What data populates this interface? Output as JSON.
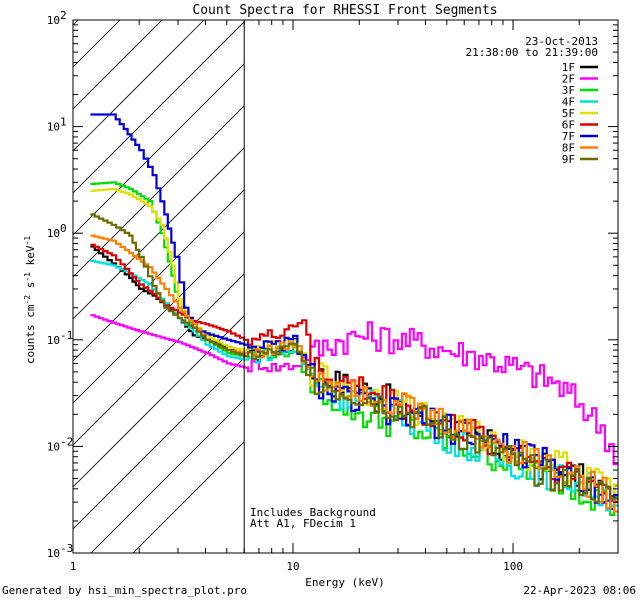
{
  "chart_data": {
    "type": "line",
    "title": "Count Spectra for RHESSI Front Segments",
    "xlabel": "Energy (keV)",
    "ylabel_main": "counts cm",
    "ylabel_sup1": "-2",
    "ylabel_mid": " s",
    "ylabel_sup2": "-1",
    "ylabel_end": " keV",
    "ylabel_sup3": "-1",
    "xscale": "log",
    "yscale": "log",
    "xlim": [
      1,
      300
    ],
    "ylim": [
      0.001,
      100
    ],
    "x_ticks": [
      {
        "value": 1,
        "label": "1"
      },
      {
        "value": 10,
        "label": "10"
      },
      {
        "value": 100,
        "label": "100"
      }
    ],
    "y_ticks": [
      {
        "value": 0.001,
        "base": "10",
        "exp": "-3"
      },
      {
        "value": 0.01,
        "base": "10",
        "exp": "-2"
      },
      {
        "value": 0.1,
        "base": "10",
        "exp": "-1"
      },
      {
        "value": 1,
        "base": "10",
        "exp": "0"
      },
      {
        "value": 10,
        "base": "10",
        "exp": "1"
      },
      {
        "value": 100,
        "base": "10",
        "exp": "2"
      }
    ],
    "date": "23-Oct-2013",
    "time_range": "21:38:00 to 21:39:00",
    "shaded_region": {
      "x_from": 1,
      "x_to": 6
    },
    "annotation_lines": [
      "Includes Background",
      "Att A1, FDecim 1"
    ],
    "series": [
      {
        "name": "1F",
        "color": "#000000",
        "values": [
          [
            1.2,
            0.75
          ],
          [
            1.5,
            0.52
          ],
          [
            1.8,
            0.38
          ],
          [
            2.0,
            0.3
          ],
          [
            2.3,
            0.26
          ],
          [
            2.6,
            0.21
          ],
          [
            3.0,
            0.16
          ],
          [
            3.5,
            0.11
          ],
          [
            4.0,
            0.1
          ],
          [
            5.0,
            0.085
          ],
          [
            6.0,
            0.07
          ],
          [
            8.0,
            0.075
          ],
          [
            10.0,
            0.09
          ],
          [
            12.0,
            0.05
          ],
          [
            15.0,
            0.04
          ],
          [
            20.0,
            0.035
          ],
          [
            30.0,
            0.025
          ],
          [
            50.0,
            0.016
          ],
          [
            80.0,
            0.01
          ],
          [
            120.0,
            0.007
          ],
          [
            200.0,
            0.005
          ],
          [
            300.0,
            0.003
          ]
        ]
      },
      {
        "name": "2F",
        "color": "#ff00ff",
        "values": [
          [
            1.2,
            0.17
          ],
          [
            1.5,
            0.145
          ],
          [
            2.0,
            0.12
          ],
          [
            2.5,
            0.105
          ],
          [
            3.0,
            0.095
          ],
          [
            4.0,
            0.075
          ],
          [
            5.0,
            0.06
          ],
          [
            6.0,
            0.055
          ],
          [
            7.0,
            0.06
          ],
          [
            8.0,
            0.055
          ],
          [
            10.0,
            0.058
          ],
          [
            12.0,
            0.075
          ],
          [
            15.0,
            0.095
          ],
          [
            20.0,
            0.11
          ],
          [
            25.0,
            0.105
          ],
          [
            30.0,
            0.1
          ],
          [
            40.0,
            0.09
          ],
          [
            50.0,
            0.08
          ],
          [
            70.0,
            0.07
          ],
          [
            100.0,
            0.055
          ],
          [
            150.0,
            0.04
          ],
          [
            200.0,
            0.025
          ],
          [
            250.0,
            0.015
          ],
          [
            300.0,
            0.007
          ]
        ]
      },
      {
        "name": "3F",
        "color": "#00dd00",
        "values": [
          [
            1.2,
            2.9
          ],
          [
            1.5,
            3.0
          ],
          [
            1.8,
            2.6
          ],
          [
            2.2,
            2.0
          ],
          [
            2.5,
            1.0
          ],
          [
            2.8,
            0.4
          ],
          [
            3.0,
            0.2
          ],
          [
            3.5,
            0.13
          ],
          [
            4.0,
            0.1
          ],
          [
            5.0,
            0.075
          ],
          [
            6.0,
            0.07
          ],
          [
            8.0,
            0.075
          ],
          [
            10.0,
            0.08
          ],
          [
            12.0,
            0.04
          ],
          [
            15.0,
            0.028
          ],
          [
            20.0,
            0.02
          ],
          [
            30.0,
            0.016
          ],
          [
            50.0,
            0.011
          ],
          [
            80.0,
            0.008
          ],
          [
            120.0,
            0.006
          ],
          [
            200.0,
            0.004
          ],
          [
            300.0,
            0.0025
          ]
        ]
      },
      {
        "name": "4F",
        "color": "#00e0e0",
        "values": [
          [
            1.2,
            0.55
          ],
          [
            1.5,
            0.5
          ],
          [
            1.8,
            0.42
          ],
          [
            2.2,
            0.33
          ],
          [
            2.6,
            0.22
          ],
          [
            3.0,
            0.16
          ],
          [
            3.5,
            0.12
          ],
          [
            4.0,
            0.09
          ],
          [
            5.0,
            0.07
          ],
          [
            6.0,
            0.065
          ],
          [
            8.0,
            0.075
          ],
          [
            10.0,
            0.08
          ],
          [
            12.0,
            0.045
          ],
          [
            15.0,
            0.032
          ],
          [
            20.0,
            0.028
          ],
          [
            30.0,
            0.02
          ],
          [
            50.0,
            0.012
          ],
          [
            80.0,
            0.008
          ],
          [
            120.0,
            0.006
          ],
          [
            200.0,
            0.0045
          ],
          [
            300.0,
            0.003
          ]
        ]
      },
      {
        "name": "5F",
        "color": "#e0e000",
        "values": [
          [
            1.2,
            2.5
          ],
          [
            1.5,
            2.6
          ],
          [
            1.8,
            2.3
          ],
          [
            2.2,
            1.8
          ],
          [
            2.5,
            1.2
          ],
          [
            2.8,
            0.5
          ],
          [
            3.0,
            0.24
          ],
          [
            3.5,
            0.14
          ],
          [
            4.0,
            0.11
          ],
          [
            5.0,
            0.085
          ],
          [
            6.0,
            0.08
          ],
          [
            8.0,
            0.085
          ],
          [
            10.0,
            0.09
          ],
          [
            12.0,
            0.05
          ],
          [
            15.0,
            0.04
          ],
          [
            20.0,
            0.035
          ],
          [
            30.0,
            0.025
          ],
          [
            50.0,
            0.016
          ],
          [
            80.0,
            0.011
          ],
          [
            120.0,
            0.008
          ],
          [
            200.0,
            0.006
          ],
          [
            300.0,
            0.0035
          ]
        ]
      },
      {
        "name": "6F",
        "color": "#dd0000",
        "values": [
          [
            1.2,
            0.78
          ],
          [
            1.5,
            0.62
          ],
          [
            1.8,
            0.42
          ],
          [
            2.0,
            0.33
          ],
          [
            2.3,
            0.27
          ],
          [
            2.6,
            0.21
          ],
          [
            3.0,
            0.18
          ],
          [
            3.5,
            0.15
          ],
          [
            4.0,
            0.14
          ],
          [
            4.5,
            0.13
          ],
          [
            5.0,
            0.12
          ],
          [
            6.0,
            0.1
          ],
          [
            8.0,
            0.11
          ],
          [
            10.0,
            0.14
          ],
          [
            11.0,
            0.16
          ],
          [
            12.0,
            0.06
          ],
          [
            15.0,
            0.042
          ],
          [
            20.0,
            0.035
          ],
          [
            30.0,
            0.025
          ],
          [
            50.0,
            0.016
          ],
          [
            80.0,
            0.011
          ],
          [
            120.0,
            0.008
          ],
          [
            200.0,
            0.005
          ],
          [
            300.0,
            0.0035
          ]
        ]
      },
      {
        "name": "7F",
        "color": "#0000dd",
        "values": [
          [
            1.2,
            13.0
          ],
          [
            1.5,
            13.0
          ],
          [
            1.7,
            9.5
          ],
          [
            2.0,
            6.0
          ],
          [
            2.3,
            3.5
          ],
          [
            2.6,
            1.5
          ],
          [
            2.9,
            0.6
          ],
          [
            3.2,
            0.2
          ],
          [
            3.5,
            0.13
          ],
          [
            4.0,
            0.115
          ],
          [
            5.0,
            0.1
          ],
          [
            6.0,
            0.09
          ],
          [
            8.0,
            0.085
          ],
          [
            10.0,
            0.1
          ],
          [
            12.0,
            0.045
          ],
          [
            15.0,
            0.03
          ],
          [
            20.0,
            0.025
          ],
          [
            30.0,
            0.02
          ],
          [
            50.0,
            0.015
          ],
          [
            80.0,
            0.011
          ],
          [
            120.0,
            0.008
          ],
          [
            200.0,
            0.005
          ],
          [
            300.0,
            0.003
          ]
        ]
      },
      {
        "name": "8F",
        "color": "#ff8000",
        "values": [
          [
            1.2,
            0.95
          ],
          [
            1.5,
            0.85
          ],
          [
            1.8,
            0.65
          ],
          [
            2.2,
            0.48
          ],
          [
            2.6,
            0.3
          ],
          [
            3.0,
            0.2
          ],
          [
            3.5,
            0.14
          ],
          [
            4.0,
            0.1
          ],
          [
            5.0,
            0.08
          ],
          [
            6.0,
            0.075
          ],
          [
            8.0,
            0.08
          ],
          [
            10.0,
            0.09
          ],
          [
            12.0,
            0.05
          ],
          [
            15.0,
            0.04
          ],
          [
            20.0,
            0.035
          ],
          [
            30.0,
            0.025
          ],
          [
            50.0,
            0.016
          ],
          [
            80.0,
            0.011
          ],
          [
            120.0,
            0.008
          ],
          [
            200.0,
            0.005
          ],
          [
            300.0,
            0.003
          ]
        ]
      },
      {
        "name": "9F",
        "color": "#6b6b00",
        "values": [
          [
            1.2,
            1.5
          ],
          [
            1.5,
            1.2
          ],
          [
            1.8,
            0.95
          ],
          [
            2.0,
            0.6
          ],
          [
            2.3,
            0.32
          ],
          [
            2.6,
            0.2
          ],
          [
            3.0,
            0.16
          ],
          [
            3.5,
            0.13
          ],
          [
            4.0,
            0.1
          ],
          [
            5.0,
            0.08
          ],
          [
            6.0,
            0.07
          ],
          [
            8.0,
            0.075
          ],
          [
            10.0,
            0.085
          ],
          [
            12.0,
            0.045
          ],
          [
            15.0,
            0.035
          ],
          [
            20.0,
            0.03
          ],
          [
            30.0,
            0.022
          ],
          [
            50.0,
            0.014
          ],
          [
            80.0,
            0.009
          ],
          [
            120.0,
            0.006
          ],
          [
            200.0,
            0.0045
          ],
          [
            300.0,
            0.003
          ]
        ]
      }
    ]
  },
  "footer": {
    "generator": "Generated by hsi_min_spectra_plot.pro",
    "timestamp": "22-Apr-2023 08:06"
  }
}
